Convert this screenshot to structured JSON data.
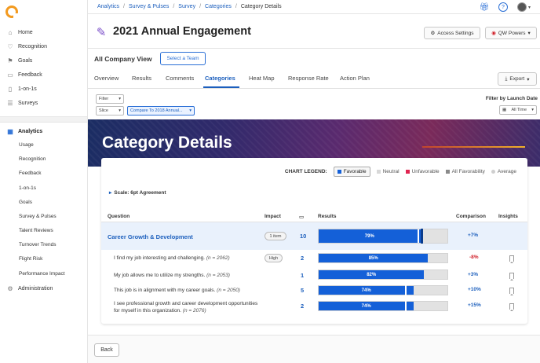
{
  "sidebar": {
    "items": [
      {
        "label": "Home",
        "icon": "home-icon"
      },
      {
        "label": "Recognition",
        "icon": "recognition-icon"
      },
      {
        "label": "Goals",
        "icon": "goals-icon"
      },
      {
        "label": "Feedback",
        "icon": "feedback-icon"
      },
      {
        "label": "1-on-1s",
        "icon": "one-on-one-icon"
      },
      {
        "label": "Surveys",
        "icon": "surveys-icon"
      }
    ],
    "analytics": {
      "label": "Analytics",
      "subitems": [
        "Usage",
        "Recognition",
        "Feedback",
        "1-on-1s",
        "Goals",
        "Survey & Pulses",
        "Talent Reviews",
        "Turnover Trends",
        "Flight Risk",
        "Performance Impact"
      ]
    },
    "administration": "Administration"
  },
  "breadcrumb": {
    "items": [
      "Analytics",
      "Survey & Pulses",
      "Survey",
      "Categories"
    ],
    "current": "Category Details"
  },
  "header": {
    "title": "2021 Annual Engagement",
    "access_settings": "Access Settings",
    "qw_powers": "QW Powers"
  },
  "view": {
    "label": "All Company View",
    "select_team": "Select a Team"
  },
  "tabs": [
    "Overview",
    "Results",
    "Comments",
    "Categories",
    "Heat Map",
    "Response Rate",
    "Action Plan"
  ],
  "active_tab": "Categories",
  "export_label": "Export",
  "filters": {
    "filter": "Filter",
    "slice": "Slice",
    "compare": "Compare To 2018 Annual...",
    "launch_label": "Filter by Launch Date",
    "time": "All Time"
  },
  "banner_title": "Category Details",
  "legend": {
    "label": "CHART LEGEND:",
    "items": [
      {
        "label": "Favorable",
        "color": "#1460d8"
      },
      {
        "label": "Neutral",
        "color": "#d8d8d8"
      },
      {
        "label": "Unfavorable",
        "color": "#e02450"
      },
      {
        "label": "All Favorability",
        "color": "#8a8a8a"
      },
      {
        "label": "Average",
        "color": "#cfcfcf"
      }
    ]
  },
  "scale": "Scale: 6pt Agreement",
  "table": {
    "headers": {
      "question": "Question",
      "impact": "Impact",
      "results": "Results",
      "comparison": "Comparison",
      "insights": "Insights"
    },
    "category": {
      "name": "Career Growth & Development",
      "impact": "1 item",
      "count": "10",
      "favorable": 79,
      "label": "79%",
      "comparison": "+7%"
    },
    "rows": [
      {
        "q": "I find my job interesting and challenging.",
        "n": "(n = 2062)",
        "impact": "High",
        "count": "2",
        "favorable": 85,
        "label": "85%",
        "comparison": "-8%",
        "cmp_color": "#d0202a"
      },
      {
        "q": "My job allows me to utilize my strengths.",
        "n": "(n = 2053)",
        "impact": "",
        "count": "1",
        "favorable": 82,
        "label": "82%",
        "comparison": "+3%",
        "cmp_color": "#1c5fbd"
      },
      {
        "q": "This job is in alignment with my career goals.",
        "n": "(n = 2050)",
        "impact": "",
        "count": "5",
        "favorable": 74,
        "label": "74%",
        "comparison": "+10%",
        "cmp_color": "#1c5fbd"
      },
      {
        "q": "I see professional growth and career development opportunities for myself in this organization.",
        "n": "(n = 2076)",
        "impact": "",
        "count": "2",
        "favorable": 74,
        "label": "74%",
        "comparison": "+15%",
        "cmp_color": "#1c5fbd"
      }
    ]
  },
  "footer": {
    "back": "Back"
  },
  "colors": {
    "accent": "#1c5fbd",
    "bar": "#1460d8",
    "logo": "#f39a1f"
  }
}
